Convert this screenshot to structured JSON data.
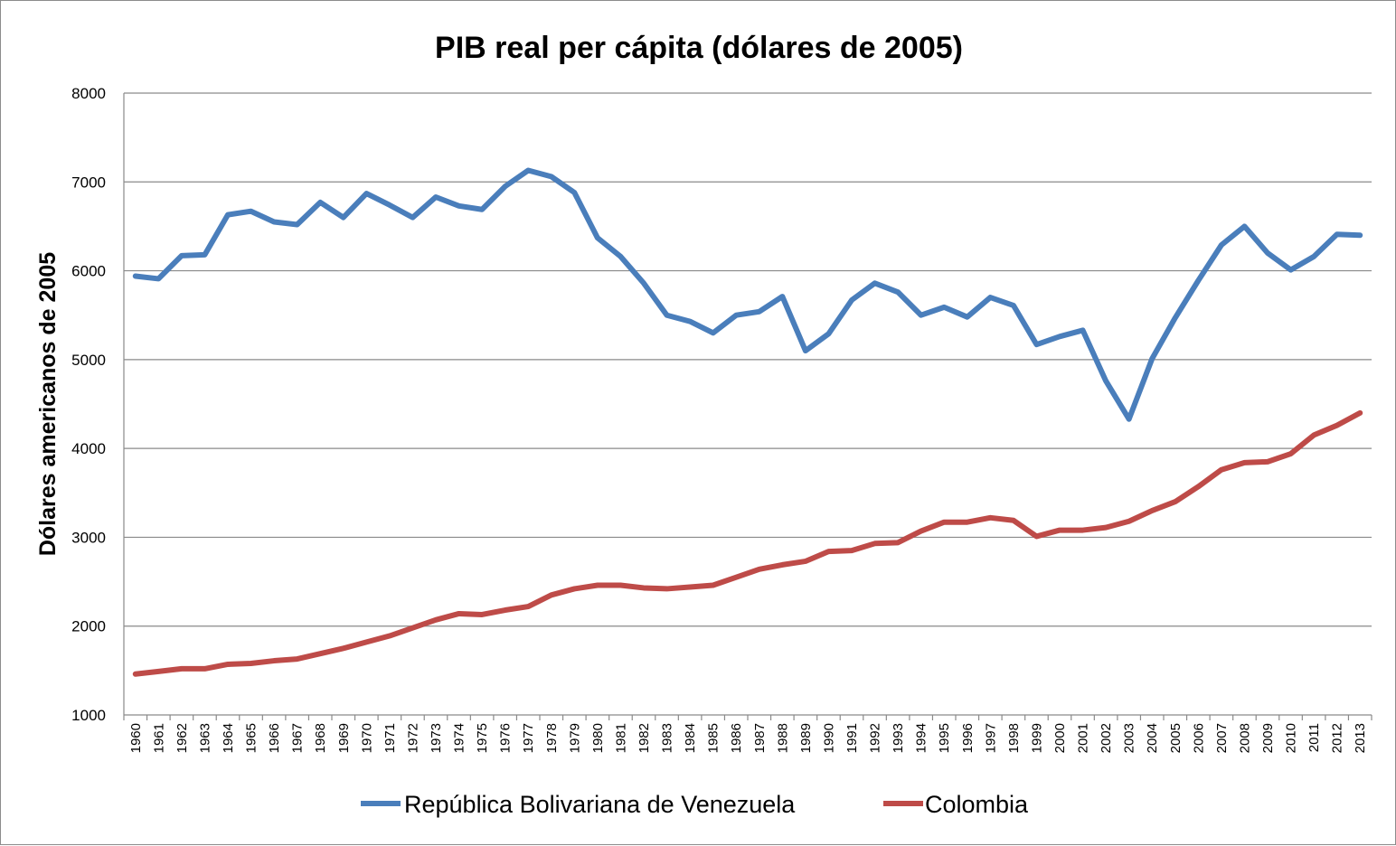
{
  "chart_data": {
    "type": "line",
    "title": "PIB real per cápita (dólares de 2005)",
    "xlabel": "",
    "ylabel": "Dólares americanos de 2005",
    "ylim": [
      1000,
      8000
    ],
    "yticks": [
      "1000",
      "2000",
      "3000",
      "4000",
      "5000",
      "6000",
      "7000",
      "8000"
    ],
    "grid": true,
    "legend_position": "bottom",
    "categories": [
      "1960",
      "1961",
      "1962",
      "1963",
      "1964",
      "1965",
      "1966",
      "1967",
      "1968",
      "1969",
      "1970",
      "1971",
      "1972",
      "1973",
      "1974",
      "1975",
      "1976",
      "1977",
      "1978",
      "1979",
      "1980",
      "1981",
      "1982",
      "1983",
      "1984",
      "1985",
      "1986",
      "1987",
      "1988",
      "1989",
      "1990",
      "1991",
      "1992",
      "1993",
      "1994",
      "1995",
      "1996",
      "1997",
      "1998",
      "1999",
      "2000",
      "2001",
      "2002",
      "2003",
      "2004",
      "2005",
      "2006",
      "2007",
      "2008",
      "2009",
      "2010",
      "2011",
      "2012",
      "2013"
    ],
    "series": [
      {
        "name": "República Bolivariana de Venezuela",
        "color": "#4a7ebb",
        "values": [
          5940,
          5910,
          6170,
          6180,
          6630,
          6670,
          6550,
          6520,
          6770,
          6600,
          6870,
          6740,
          6600,
          6830,
          6730,
          6690,
          6950,
          7130,
          7060,
          6880,
          6370,
          6160,
          5860,
          5500,
          5430,
          5300,
          5500,
          5540,
          5710,
          5100,
          5290,
          5670,
          5860,
          5760,
          5500,
          5590,
          5480,
          5700,
          5610,
          5170,
          5260,
          5330,
          4760,
          4330,
          5010,
          5470,
          5890,
          6290,
          6500,
          6200,
          6010,
          6160,
          6410,
          6400
        ]
      },
      {
        "name": "Colombia",
        "color": "#be4b48",
        "values": [
          1460,
          1490,
          1520,
          1520,
          1570,
          1580,
          1610,
          1630,
          1690,
          1750,
          1820,
          1890,
          1980,
          2070,
          2140,
          2130,
          2180,
          2220,
          2350,
          2420,
          2460,
          2460,
          2430,
          2420,
          2440,
          2460,
          2550,
          2640,
          2690,
          2730,
          2840,
          2850,
          2930,
          2940,
          3070,
          3170,
          3170,
          3220,
          3190,
          3010,
          3080,
          3080,
          3110,
          3180,
          3300,
          3400,
          3570,
          3760,
          3840,
          3850,
          3940,
          4150,
          4260,
          4400
        ]
      }
    ]
  }
}
